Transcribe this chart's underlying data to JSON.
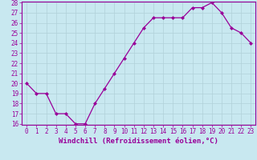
{
  "x": [
    0,
    1,
    2,
    3,
    4,
    5,
    6,
    7,
    8,
    9,
    10,
    11,
    12,
    13,
    14,
    15,
    16,
    17,
    18,
    19,
    20,
    21,
    22,
    23
  ],
  "y": [
    20,
    19,
    19,
    17,
    17,
    16,
    16,
    18,
    19.5,
    21,
    22.5,
    24,
    25.5,
    26.5,
    26.5,
    26.5,
    26.5,
    27.5,
    27.5,
    28,
    27,
    25.5,
    25,
    24
  ],
  "line_color": "#990099",
  "marker": "D",
  "markersize": 2.0,
  "linewidth": 0.9,
  "xlabel": "Windchill (Refroidissement éolien,°C)",
  "xlabel_fontsize": 6.5,
  "ylim": [
    16,
    28
  ],
  "xlim": [
    -0.5,
    23.5
  ],
  "yticks": [
    16,
    17,
    18,
    19,
    20,
    21,
    22,
    23,
    24,
    25,
    26,
    27,
    28
  ],
  "xticks": [
    0,
    1,
    2,
    3,
    4,
    5,
    6,
    7,
    8,
    9,
    10,
    11,
    12,
    13,
    14,
    15,
    16,
    17,
    18,
    19,
    20,
    21,
    22,
    23
  ],
  "xtick_labels": [
    "0",
    "1",
    "2",
    "3",
    "4",
    "5",
    "6",
    "7",
    "8",
    "9",
    "10",
    "11",
    "12",
    "13",
    "14",
    "15",
    "16",
    "17",
    "18",
    "19",
    "20",
    "21",
    "22",
    "23"
  ],
  "background_color": "#c8e8f0",
  "plot_bg_color": "#c8e8f0",
  "grid_color": "#b0d0d8",
  "tick_color": "#990099",
  "tick_fontsize": 5.5,
  "xlabel_fontcolor": "#990099",
  "spine_color": "#990099"
}
